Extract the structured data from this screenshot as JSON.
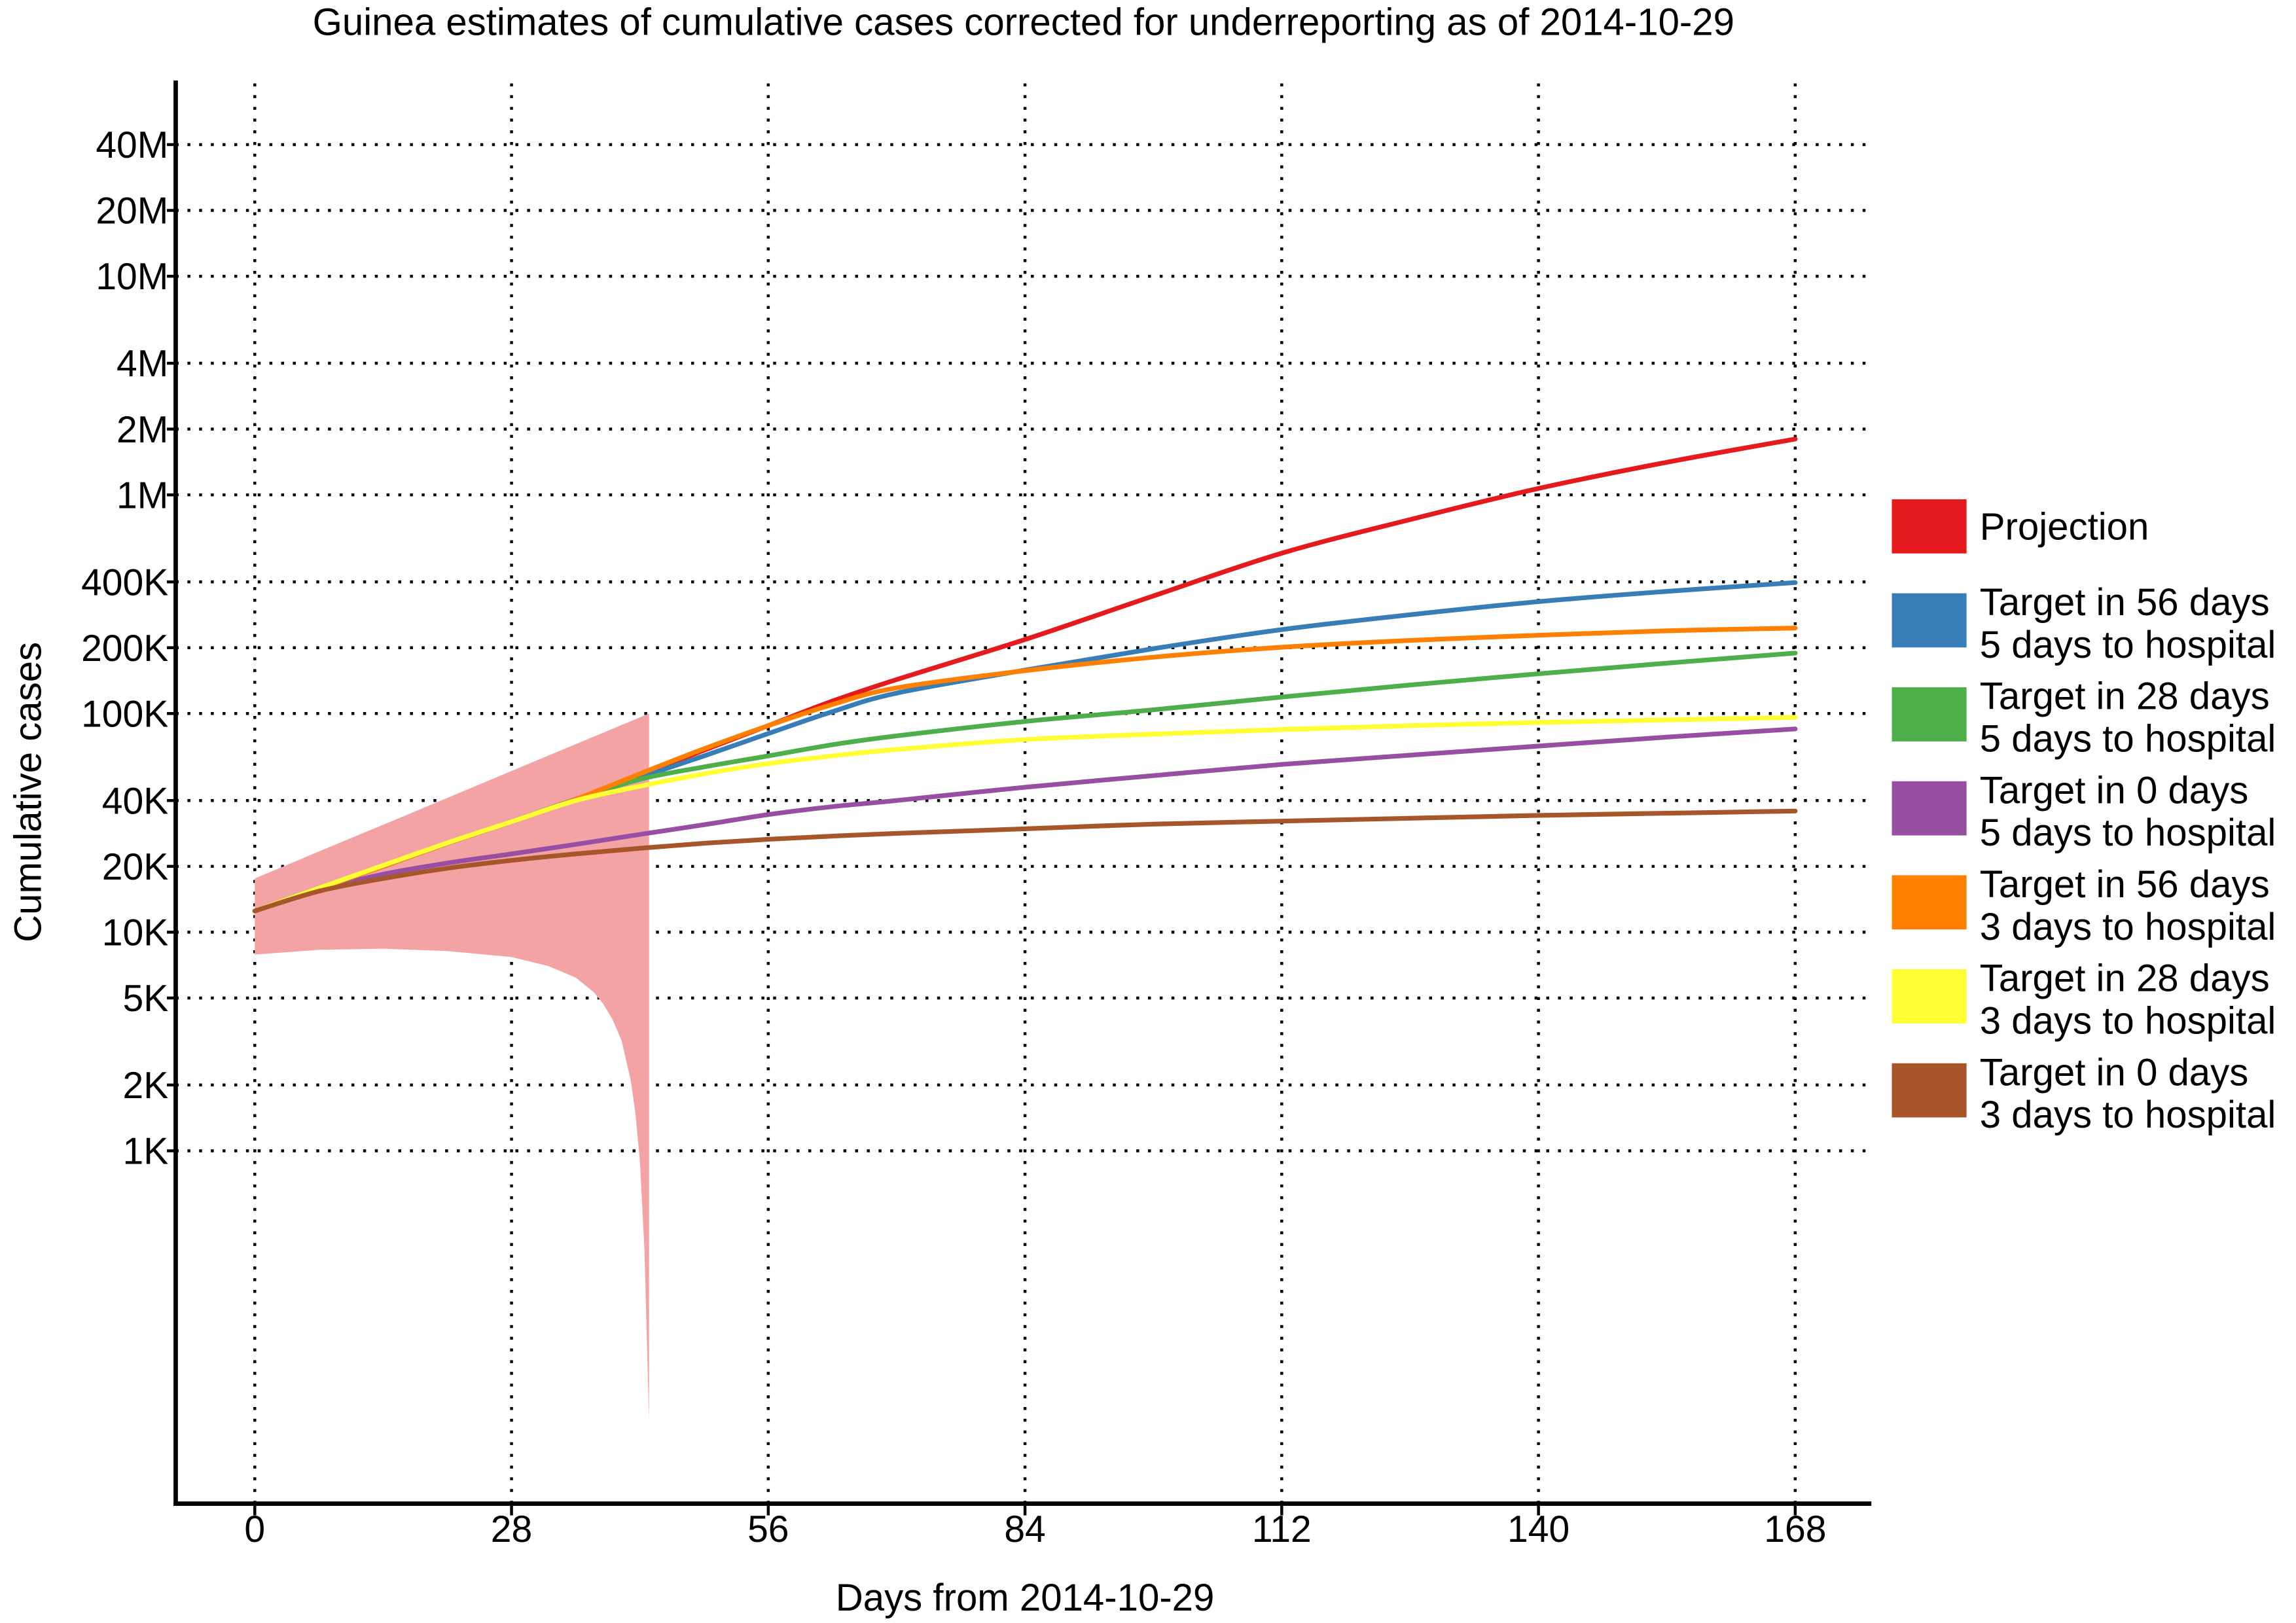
{
  "chart_data": {
    "type": "line",
    "title": "Guinea estimates of cumulative cases corrected for underreporting as of 2014-10-29",
    "xlabel": "Days from 2014-10-29",
    "ylabel": "Cumulative cases",
    "yscale": "log",
    "xlim": [
      -8.6,
      176.3
    ],
    "ylim": [
      24,
      79000000
    ],
    "grid": true,
    "legend_position": "right",
    "x_ticks": [
      0,
      28,
      56,
      84,
      112,
      140,
      168
    ],
    "y_ticks": [
      {
        "value": 40000000,
        "label": "40M"
      },
      {
        "value": 20000000,
        "label": "20M"
      },
      {
        "value": 10000000,
        "label": "10M"
      },
      {
        "value": 4000000,
        "label": "4M"
      },
      {
        "value": 2000000,
        "label": "2M"
      },
      {
        "value": 1000000,
        "label": "1M"
      },
      {
        "value": 400000,
        "label": "400K"
      },
      {
        "value": 200000,
        "label": "200K"
      },
      {
        "value": 100000,
        "label": "100K"
      },
      {
        "value": 40000,
        "label": "40K"
      },
      {
        "value": 20000,
        "label": "20K"
      },
      {
        "value": 10000,
        "label": "10K"
      },
      {
        "value": 5000,
        "label": "5K"
      },
      {
        "value": 2000,
        "label": "2K"
      },
      {
        "value": 1000,
        "label": "1K"
      }
    ],
    "x": [
      0,
      7,
      14,
      21,
      28,
      35,
      42,
      49,
      56,
      63,
      70,
      84,
      98,
      112,
      126,
      140,
      154,
      168
    ],
    "series": [
      {
        "name": [
          "Projection"
        ],
        "color": "#e41a1c",
        "values": [
          12500,
          15800,
          20000,
          25500,
          32000,
          40500,
          52000,
          68000,
          88000,
          114000,
          143000,
          218000,
          345000,
          541000,
          771000,
          1070000,
          1410000,
          1800000
        ]
      },
      {
        "name": [
          "Target in 56 days",
          "5 days to hospital"
        ],
        "color": "#377eb8",
        "values": [
          12500,
          15800,
          20000,
          25500,
          32000,
          40500,
          51000,
          64000,
          81000,
          102000,
          124000,
          158000,
          198000,
          242000,
          283000,
          325000,
          362000,
          397000
        ]
      },
      {
        "name": [
          "Target in 28 days",
          "5 days to hospital"
        ],
        "color": "#4daf4a",
        "values": [
          12500,
          15800,
          20000,
          25500,
          32000,
          40500,
          50000,
          57000,
          64000,
          72000,
          79000,
          92000,
          104000,
          119000,
          135000,
          152000,
          170000,
          189000
        ]
      },
      {
        "name": [
          "Target in 0 days",
          "5 days to hospital"
        ],
        "color": "#984ea3",
        "values": [
          12500,
          15600,
          18400,
          20700,
          22800,
          25200,
          28000,
          31000,
          34500,
          37500,
          40000,
          46000,
          52000,
          58500,
          64500,
          71000,
          78000,
          85000
        ]
      },
      {
        "name": [
          "Target in 56 days",
          "3 days to hospital"
        ],
        "color": "#ff7f00",
        "values": [
          12500,
          15800,
          20000,
          25500,
          32000,
          40500,
          53000,
          69000,
          88000,
          110000,
          131000,
          157000,
          181000,
          201000,
          216000,
          228000,
          239000,
          246000
        ]
      },
      {
        "name": [
          "Target in 28 days",
          "3 days to hospital"
        ],
        "color": "#ffff33",
        "values": [
          12500,
          15900,
          20200,
          25600,
          32000,
          40000,
          46500,
          53000,
          59000,
          64000,
          68500,
          76000,
          80500,
          84500,
          88000,
          91000,
          93500,
          96000
        ]
      },
      {
        "name": [
          "Target in 0 days",
          "3 days to hospital"
        ],
        "color": "#a65628",
        "values": [
          12500,
          15400,
          17600,
          19600,
          21300,
          22800,
          24200,
          25500,
          26600,
          27500,
          28300,
          29700,
          31200,
          32200,
          33200,
          34200,
          35000,
          35800
        ]
      }
    ],
    "interval": {
      "color": "#f4a3a5",
      "x": [
        0,
        7,
        14,
        21,
        28,
        32,
        35,
        37,
        38,
        39,
        40,
        41,
        41.5,
        42,
        42.5,
        43
      ],
      "upper": [
        17600,
        23400,
        31000,
        41100,
        54600,
        64200,
        72400,
        78500,
        81700,
        85100,
        88600,
        92200,
        94100,
        96000,
        98000,
        100000
      ],
      "lower": [
        7900,
        8300,
        8400,
        8200,
        7700,
        7000,
        6200,
        5300,
        4700,
        4000,
        3200,
        2100,
        1500,
        900,
        350,
        58
      ]
    }
  }
}
